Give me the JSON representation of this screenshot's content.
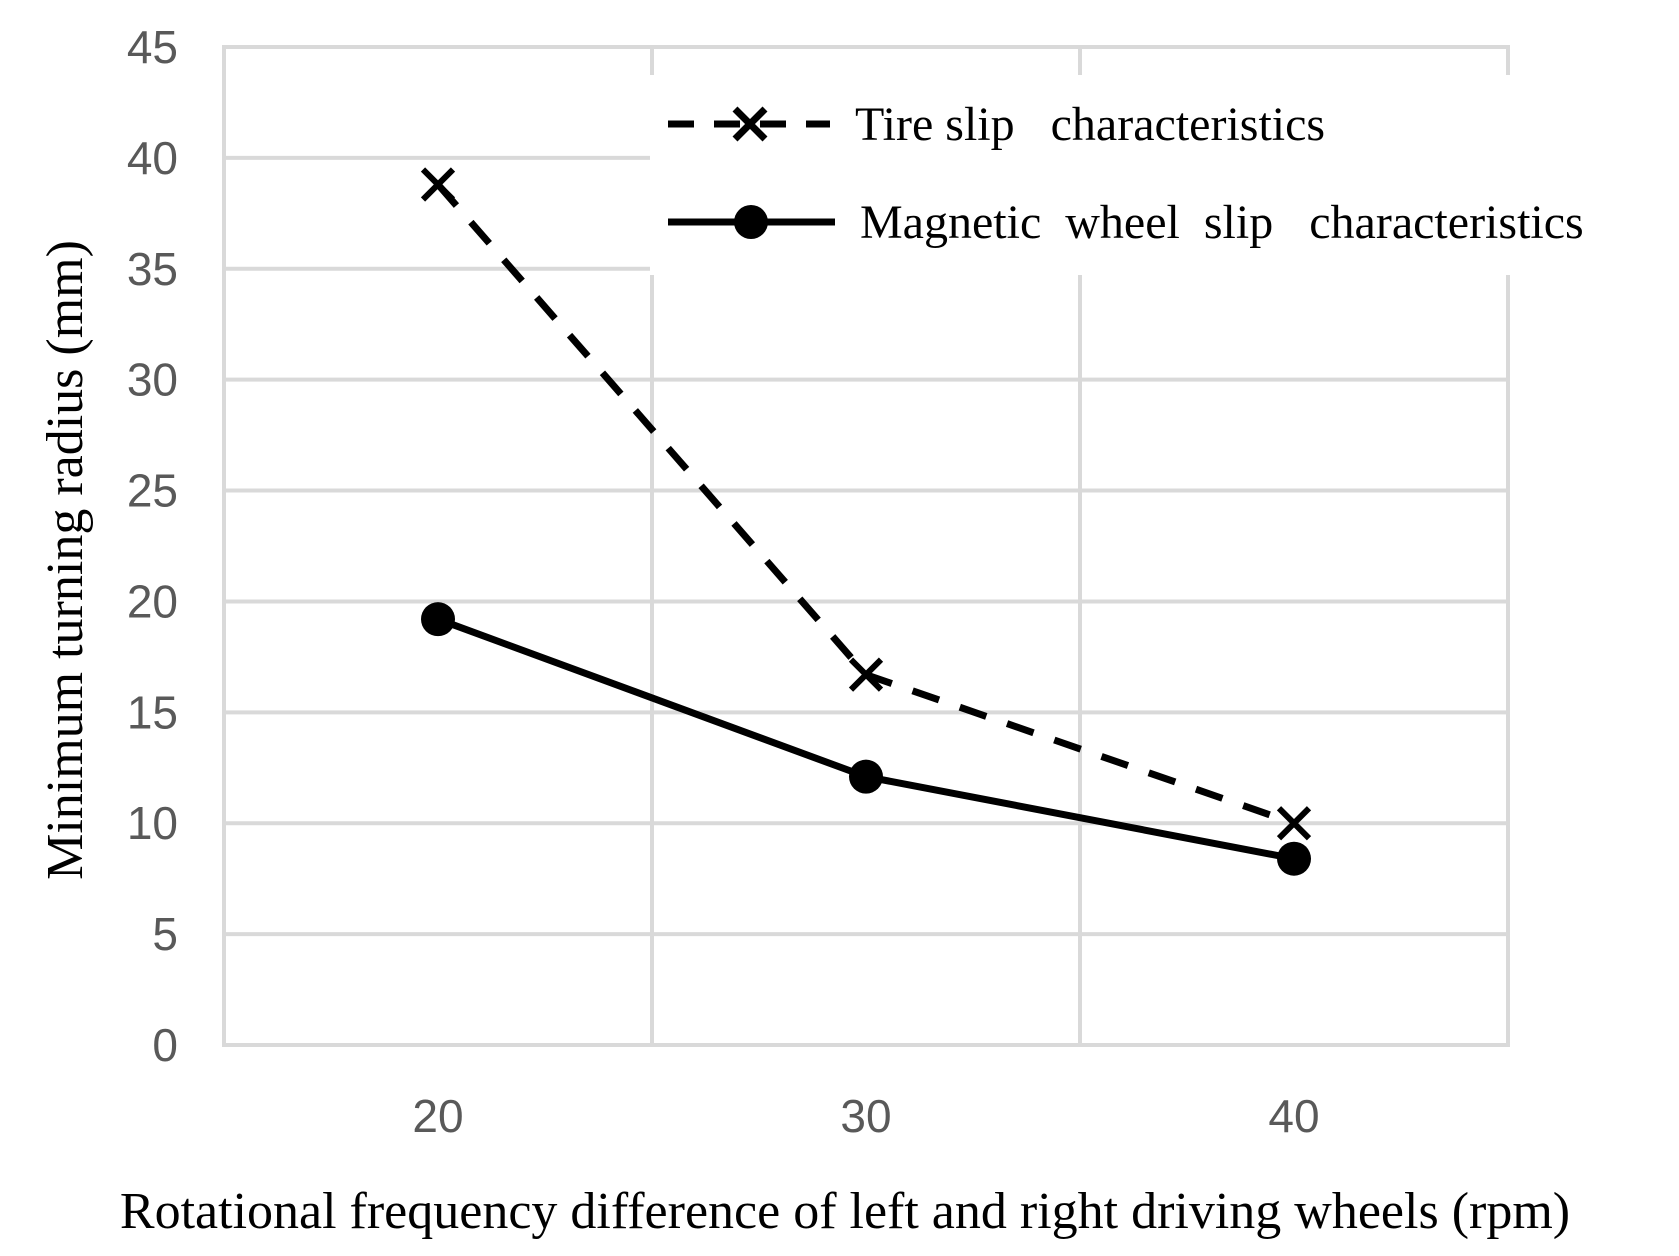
{
  "chart_data": {
    "type": "line",
    "title": "",
    "xlabel": "Rotational frequency difference of left and right driving wheels (rpm)",
    "ylabel": "Minimum turning radius (mm)",
    "categories": [
      "20",
      "30",
      "40"
    ],
    "x": [
      20,
      30,
      40
    ],
    "xlim": [
      15,
      45
    ],
    "ylim": [
      0,
      45
    ],
    "yticks": [
      "0",
      "5",
      "10",
      "15",
      "20",
      "25",
      "30",
      "35",
      "40",
      "45"
    ],
    "grid": true,
    "legend_position": "top-right",
    "series": [
      {
        "name": "Tire slip   characteristics",
        "values": [
          38.8,
          16.7,
          10.0
        ],
        "line_style": "dashed",
        "marker": "x",
        "color": "#000000"
      },
      {
        "name": "Magnetic  wheel  slip   characteristics",
        "values": [
          19.2,
          12.1,
          8.4
        ],
        "line_style": "solid",
        "marker": "circle",
        "color": "#000000"
      }
    ]
  }
}
